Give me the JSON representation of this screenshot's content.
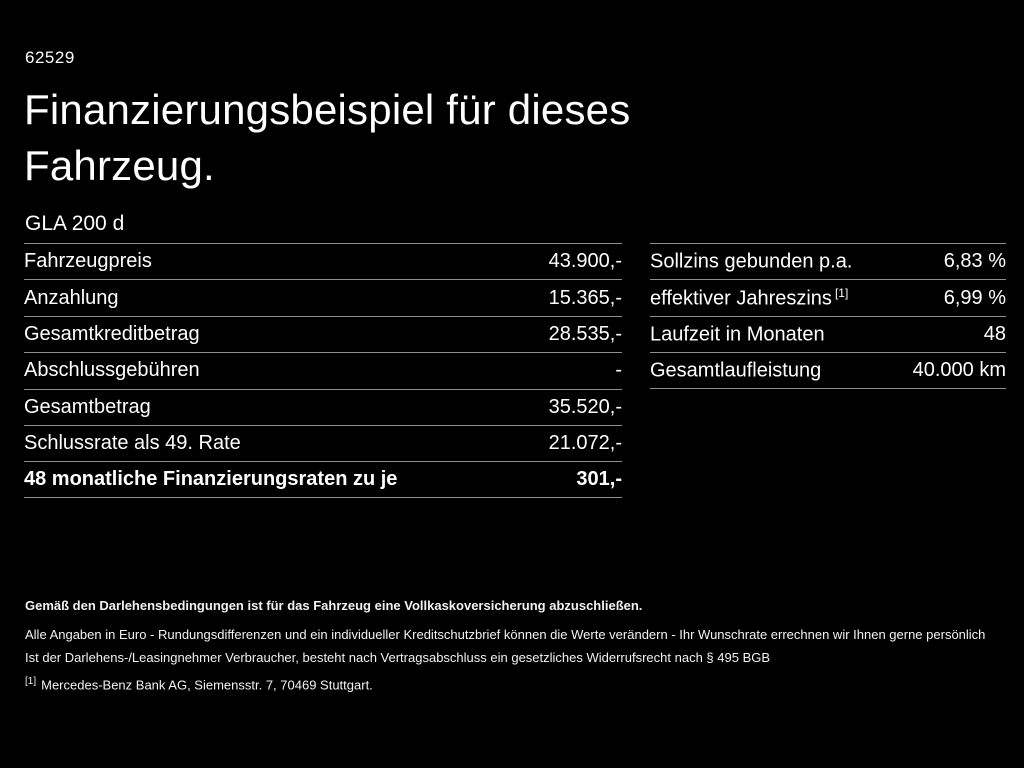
{
  "page": {
    "ref_number": "62529",
    "title_lines": [
      "Finanzierungsbeispiel für dieses",
      "Fahrzeug."
    ],
    "model": "GLA 200 d"
  },
  "finance_table": {
    "rows": [
      {
        "label": "Fahrzeugpreis",
        "value": "43.900,-"
      },
      {
        "label": "Anzahlung",
        "value": "15.365,-"
      },
      {
        "label": "Gesamtkreditbetrag",
        "value": "28.535,-"
      },
      {
        "label": "Abschlussgebühren",
        "value": "-"
      },
      {
        "label": "Gesamtbetrag",
        "value": "35.520,-"
      },
      {
        "label": "Schlussrate als 49. Rate",
        "value": "21.072,-"
      },
      {
        "label": "48 monatliche Finanzierungsraten zu je",
        "value": "301,-"
      }
    ]
  },
  "conditions_table": {
    "rows": [
      {
        "label": "Sollzins gebunden p.a.",
        "sup": "",
        "value": "6,83 %"
      },
      {
        "label": "effektiver Jahreszins",
        "sup": "[1]",
        "value": "6,99 %"
      },
      {
        "label": "Laufzeit in Monaten",
        "sup": "",
        "value": "48"
      },
      {
        "label": "Gesamtlaufleistung",
        "sup": "",
        "value": "40.000 km"
      }
    ]
  },
  "footer": {
    "insurance_note": "Gemäß den Darlehensbedingungen ist für das Fahrzeug eine Vollkaskoversicherung abzuschließen.",
    "disclaimer1": "Alle Angaben in Euro - Rundungsdifferenzen und ein individueller Kreditschutzbrief können die Werte verändern - Ihr Wunschrate errechnen wir Ihnen gerne persönlich",
    "disclaimer2": "Ist der Darlehens-/Leasingnehmer Verbraucher, besteht nach Vertragsabschluss ein gesetzliches Widerrufsrecht nach § 495 BGB",
    "footnote_marker": "[1]",
    "footnote": "Mercedes-Benz Bank AG, Siemensstr. 7, 70469 Stuttgart."
  },
  "colors": {
    "background": "#000000",
    "text": "#ffffff",
    "divider": "#8f8f8f"
  }
}
